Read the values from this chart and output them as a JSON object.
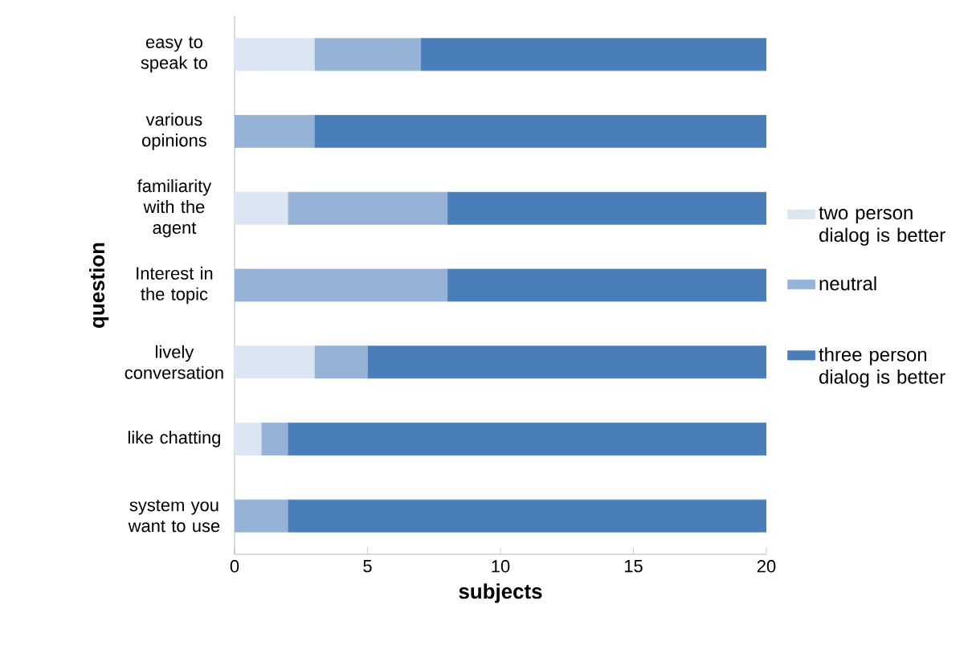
{
  "chart_data": {
    "type": "bar",
    "orientation": "horizontal",
    "stacked": true,
    "xlabel": "subjects",
    "ylabel": "question",
    "categories": [
      "easy to speak to",
      "various opinions",
      "familiarity with the agent",
      "Interest in the topic",
      "lively conversation",
      "like chatting",
      "system you want to use"
    ],
    "series": [
      {
        "name": "two person dialog is better",
        "color": "#dce6f2",
        "values": [
          3,
          0,
          2,
          0,
          3,
          1,
          0
        ]
      },
      {
        "name": "neutral",
        "color": "#95b3d7",
        "values": [
          4,
          3,
          6,
          8,
          2,
          1,
          2
        ]
      },
      {
        "name": "three person dialog is better",
        "color": "#4a7ebb",
        "values": [
          13,
          17,
          12,
          12,
          15,
          18,
          18
        ]
      }
    ],
    "xlim": [
      0,
      20
    ],
    "xticks": [
      0,
      5,
      10,
      15,
      20
    ],
    "legend": "right"
  }
}
